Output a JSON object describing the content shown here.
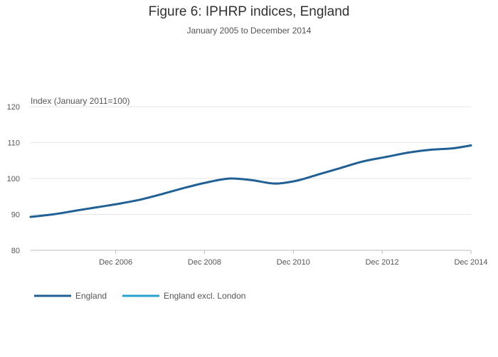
{
  "title": "Figure 6: IPHRP indices, England",
  "subtitle": "January 2005 to December 2014",
  "chart_data": {
    "type": "line",
    "title": "Figure 6: IPHRP indices, England",
    "subtitle": "January 2005 to December 2014",
    "ylabel": "Index (January 2011=100)",
    "xlabel": "",
    "ylim": [
      80,
      120
    ],
    "yticks": [
      "80",
      "90",
      "100",
      "110",
      "120"
    ],
    "xlim": [
      "2005-01",
      "2014-12"
    ],
    "xticks": [
      {
        "x": "2006-12",
        "label": "Dec 2006"
      },
      {
        "x": "2008-12",
        "label": "Dec 2008"
      },
      {
        "x": "2010-12",
        "label": "Dec 2010"
      },
      {
        "x": "2012-12",
        "label": "Dec 2012"
      },
      {
        "x": "2014-12",
        "label": "Dec 2014"
      }
    ],
    "grid": true,
    "legend_position": "bottom-left",
    "series": [
      {
        "name": "England",
        "color": "#206095",
        "points": [
          {
            "x": "2005-01",
            "y": 89.3
          },
          {
            "x": "2005-07",
            "y": 90.0
          },
          {
            "x": "2006-01",
            "y": 91.0
          },
          {
            "x": "2006-07",
            "y": 92.0
          },
          {
            "x": "2007-01",
            "y": 93.0
          },
          {
            "x": "2007-07",
            "y": 94.2
          },
          {
            "x": "2008-01",
            "y": 95.8
          },
          {
            "x": "2008-07",
            "y": 97.5
          },
          {
            "x": "2009-01",
            "y": 99.0
          },
          {
            "x": "2009-07",
            "y": 100.0
          },
          {
            "x": "2010-01",
            "y": 99.5
          },
          {
            "x": "2010-07",
            "y": 98.6
          },
          {
            "x": "2011-01",
            "y": 99.4
          },
          {
            "x": "2011-07",
            "y": 101.2
          },
          {
            "x": "2012-01",
            "y": 103.0
          },
          {
            "x": "2012-07",
            "y": 104.8
          },
          {
            "x": "2013-01",
            "y": 106.0
          },
          {
            "x": "2013-07",
            "y": 107.2
          },
          {
            "x": "2014-01",
            "y": 108.0
          },
          {
            "x": "2014-07",
            "y": 108.4
          },
          {
            "x": "2014-12",
            "y": 109.2
          }
        ]
      },
      {
        "name": "England excl. London",
        "color": "#27a0cc",
        "points": []
      }
    ]
  }
}
